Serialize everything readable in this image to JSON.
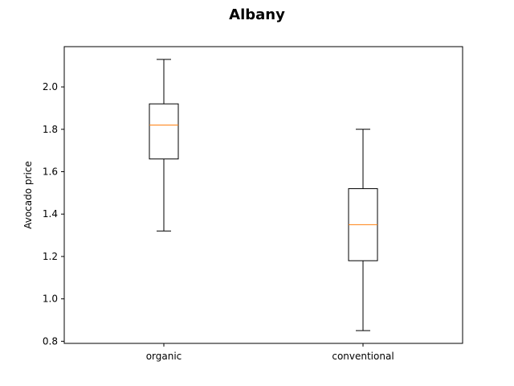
{
  "chart_data": {
    "type": "box",
    "title": "Albany",
    "xlabel": "",
    "ylabel": "Avocado price",
    "ylim": [
      0.79,
      2.19
    ],
    "yticks": [
      "0.8",
      "1.0",
      "1.2",
      "1.4",
      "1.6",
      "1.8",
      "2.0"
    ],
    "categories": [
      "organic",
      "conventional"
    ],
    "boxes": [
      {
        "category": "organic",
        "whisker_low": 1.32,
        "q1": 1.66,
        "median": 1.82,
        "q3": 1.92,
        "whisker_high": 2.13
      },
      {
        "category": "conventional",
        "whisker_low": 0.85,
        "q1": 1.18,
        "median": 1.35,
        "q3": 1.52,
        "whisker_high": 1.8
      }
    ],
    "colors": {
      "box": "#000000",
      "median": "#ff7f0e"
    },
    "grid": false
  }
}
